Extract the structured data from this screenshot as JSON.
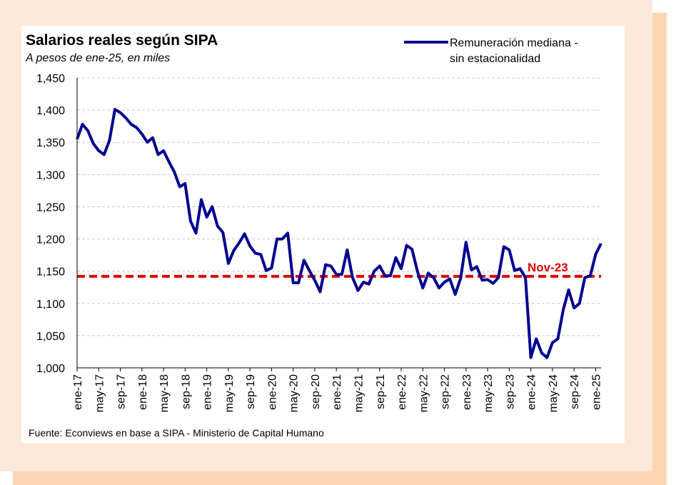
{
  "colors": {
    "series": "#000090",
    "reference": "#e00000",
    "grid": "#c8c8c8",
    "frame": "#fde9d9",
    "frame_shadow": "#fcd5b5"
  },
  "chart_data": {
    "type": "line",
    "title": "Salarios reales según SIPA",
    "subtitle": "A pesos de ene-25, en miles",
    "xlabel": "",
    "ylabel": "",
    "ylim": [
      1000,
      1450
    ],
    "yticks": [
      1000,
      1050,
      1100,
      1150,
      1200,
      1250,
      1300,
      1350,
      1400,
      1450
    ],
    "ytick_labels": [
      "1,000",
      "1,050",
      "1,100",
      "1,150",
      "1,200",
      "1,250",
      "1,300",
      "1,350",
      "1,400",
      "1,450"
    ],
    "grid": true,
    "legend_position": "top-right",
    "x_tick_labels": [
      "ene-17",
      "may-17",
      "sep-17",
      "ene-18",
      "may-18",
      "sep-18",
      "ene-19",
      "may-19",
      "sep-19",
      "ene-20",
      "may-20",
      "sep-20",
      "ene-21",
      "may-21",
      "sep-21",
      "ene-22",
      "may-22",
      "sep-22",
      "ene-23",
      "may-23",
      "sep-23",
      "ene-24",
      "may-24",
      "sep-24",
      "ene-25"
    ],
    "x_start": "2017-01",
    "x_end": "2025-01",
    "series": [
      {
        "name": "Remuneración mediana - sin estacionalidad",
        "values": [
          1355,
          1378,
          1368,
          1348,
          1337,
          1331,
          1353,
          1401,
          1396,
          1388,
          1378,
          1373,
          1363,
          1350,
          1357,
          1331,
          1337,
          1320,
          1304,
          1281,
          1286,
          1228,
          1209,
          1261,
          1234,
          1250,
          1220,
          1210,
          1162,
          1182,
          1194,
          1208,
          1189,
          1178,
          1176,
          1151,
          1155,
          1200,
          1200,
          1209,
          1132,
          1132,
          1167,
          1151,
          1136,
          1118,
          1160,
          1158,
          1145,
          1145,
          1183,
          1140,
          1120,
          1133,
          1130,
          1150,
          1158,
          1143,
          1143,
          1171,
          1154,
          1190,
          1184,
          1150,
          1124,
          1147,
          1140,
          1124,
          1133,
          1138,
          1114,
          1139,
          1195,
          1152,
          1157,
          1136,
          1137,
          1131,
          1140,
          1188,
          1183,
          1151,
          1154,
          1140,
          1016,
          1045,
          1023,
          1016,
          1039,
          1045,
          1090,
          1121,
          1093,
          1100,
          1140,
          1143,
          1176,
          1193
        ]
      }
    ],
    "reference_line": {
      "value": 1142,
      "label": "Nov-23"
    }
  },
  "source": "Fuente: Econviews en base a SIPA - Ministerio de Capital Humano"
}
